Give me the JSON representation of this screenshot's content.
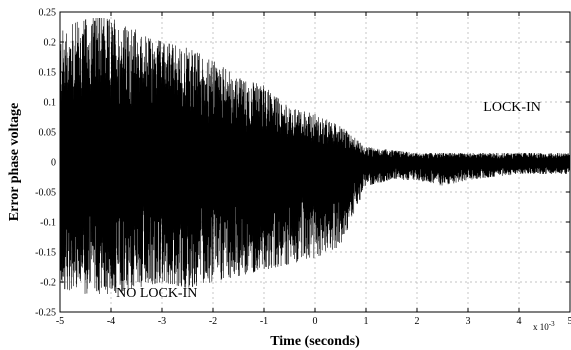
{
  "chart_data": {
    "type": "line",
    "title": "",
    "xlabel": "Time (seconds)",
    "ylabel": "Error phase voltage",
    "xlim": [
      -5,
      5
    ],
    "ylim": [
      -0.25,
      0.25
    ],
    "x_exponent_label": "x 10",
    "x_exponent_power": "-3",
    "grid": true,
    "x_ticks": [
      -5,
      -4,
      -3,
      -2,
      -1,
      0,
      1,
      2,
      3,
      4,
      5
    ],
    "y_ticks": [
      -0.25,
      -0.2,
      -0.15,
      -0.1,
      -0.05,
      0,
      0.05,
      0.1,
      0.15,
      0.2,
      0.25
    ],
    "x_tick_labels": [
      "-5",
      "-4",
      "-3",
      "-2",
      "-1",
      "0",
      "1",
      "2",
      "3",
      "4",
      "5"
    ],
    "y_tick_labels": [
      "-0.25",
      "-0.2",
      "-0.15",
      "-0.1",
      "-0.05",
      "0",
      "0.05",
      "0.1",
      "0.15",
      "0.2",
      "0.25"
    ],
    "annotations": [
      {
        "text": "LOCK-IN",
        "x": 3.3,
        "y": 0.085
      },
      {
        "text": "NO  LOCK-IN",
        "x": -3.9,
        "y": -0.225
      }
    ],
    "series": [
      {
        "color": "#000000",
        "envelope": {
          "x": [
            -5,
            -4.5,
            -4,
            -3.5,
            -3,
            -2.5,
            -2,
            -1.5,
            -1,
            -0.5,
            0,
            0.5,
            1,
            1.5,
            2,
            2.5,
            3,
            3.5,
            4,
            4.5,
            5
          ],
          "upper": [
            0.22,
            0.24,
            0.24,
            0.22,
            0.2,
            0.19,
            0.17,
            0.14,
            0.13,
            0.09,
            0.08,
            0.06,
            0.025,
            0.02,
            0.015,
            0.015,
            0.015,
            0.015,
            0.015,
            0.015,
            0.015
          ],
          "lower": [
            -0.21,
            -0.22,
            -0.22,
            -0.21,
            -0.2,
            -0.21,
            -0.2,
            -0.19,
            -0.18,
            -0.17,
            -0.16,
            -0.14,
            -0.04,
            -0.03,
            -0.03,
            -0.04,
            -0.03,
            -0.025,
            -0.02,
            -0.02,
            -0.02
          ]
        }
      }
    ]
  }
}
